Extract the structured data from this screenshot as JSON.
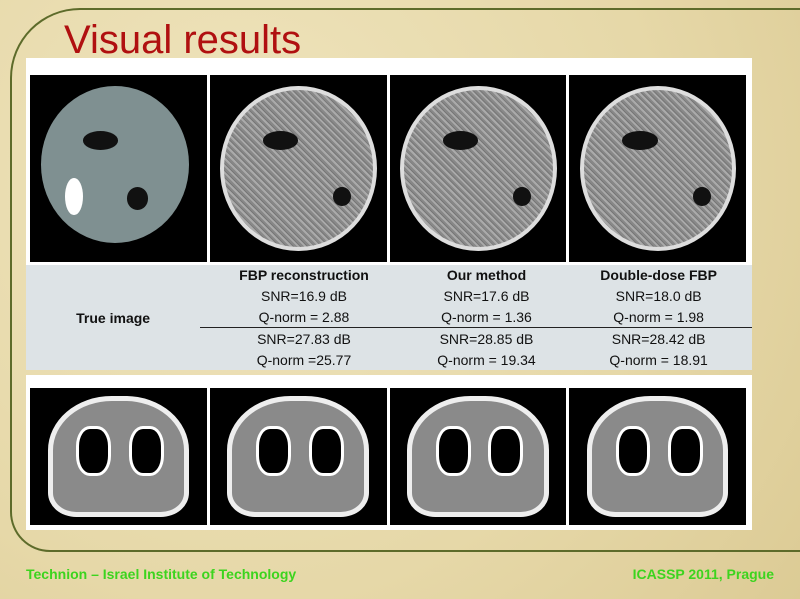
{
  "title": "Visual results",
  "table": {
    "row_label": "True image",
    "columns": [
      {
        "header": "FBP reconstruction",
        "snr1": "SNR=16.9 dB",
        "q1": "Q-norm  = 2.88",
        "snr2": "SNR=27.83 dB",
        "q2": "Q-norm  =25.77"
      },
      {
        "header": "Our method",
        "snr1": "SNR=17.6 dB",
        "q1": "Q-norm = 1.36",
        "snr2": "SNR=28.85 dB",
        "q2": "Q-norm  = 19.34"
      },
      {
        "header": "Double-dose FBP",
        "snr1": "SNR=18.0 dB",
        "q1": "Q-norm = 1.98",
        "snr2": "SNR=28.42 dB",
        "q2": "Q-norm  = 18.91"
      }
    ]
  },
  "footer": {
    "left": "Technion – Israel Institute of Technology",
    "right": "ICASSP 2011, Prague"
  },
  "colors": {
    "title": "#b01010",
    "footer": "#3cd41e",
    "table_bg": "#dde3e6"
  }
}
